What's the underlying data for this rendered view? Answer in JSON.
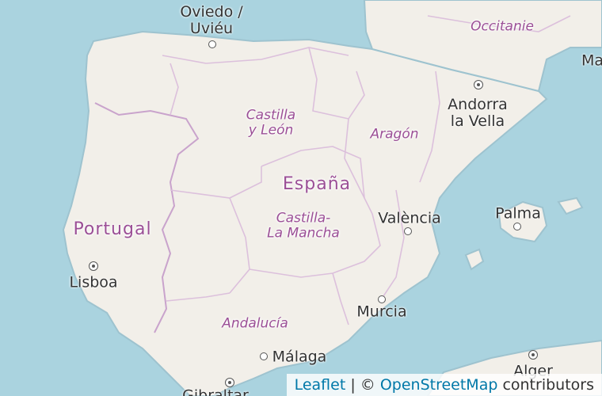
{
  "map": {
    "countries": {
      "spain": "España",
      "portugal": "Portugal"
    },
    "regions": {
      "castilla_leon": "Castilla\ny León",
      "aragon": "Aragón",
      "castilla_la_mancha": "Castilla-\nLa Mancha",
      "andalucia": "Andalucía",
      "occitanie": "Occitanie"
    },
    "cities": {
      "oviedo": "Oviedo /\nUviéu",
      "andorra": "Andorra\nla Vella",
      "valencia": "València",
      "palma": "Palma",
      "lisboa": "Lisboa",
      "murcia": "Murcia",
      "malaga": "Málaga",
      "alger": "Alger",
      "gibraltar": "Gibraltar",
      "partial_edge": "Ma"
    },
    "colors": {
      "sea": "#aad3df",
      "land": "#f2efe9",
      "border": "#c9a3cc",
      "label": "#9b4f96"
    }
  },
  "attribution": {
    "leaflet": "Leaflet",
    "separator": " | © ",
    "osm": "OpenStreetMap",
    "contributors": " contributors"
  }
}
